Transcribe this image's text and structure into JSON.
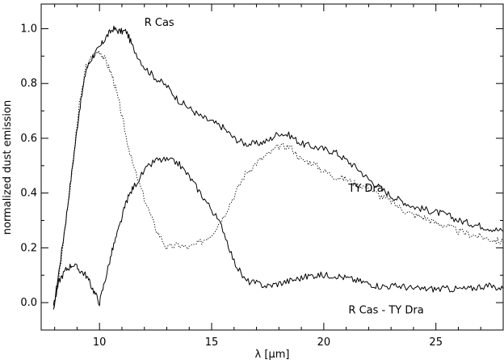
{
  "chart_data": {
    "type": "line",
    "xlabel": "λ [μm]",
    "ylabel": "normalized dust emission",
    "xlim": [
      7.4,
      28.0
    ],
    "ylim": [
      -0.1,
      1.09
    ],
    "xticks": [
      10,
      15,
      20,
      25
    ],
    "yticks": [
      0.0,
      0.2,
      0.4,
      0.6,
      0.8,
      1.0
    ],
    "xtick_labels": [
      "10",
      "15",
      "20",
      "25"
    ],
    "ytick_labels": [
      "0.0",
      "0.2",
      "0.4",
      "0.6",
      "0.8",
      "1.0"
    ],
    "grid": false,
    "legend": "none",
    "series": [
      {
        "name": "R Cas",
        "style": "solid",
        "x": [
          7.95,
          8.2,
          8.5,
          8.8,
          9.1,
          9.4,
          9.7,
          10.0,
          10.3,
          10.6,
          10.9,
          11.2,
          11.5,
          12.0,
          12.5,
          13.0,
          13.5,
          14.0,
          14.5,
          15.0,
          15.5,
          16.0,
          16.5,
          17.0,
          17.5,
          18.0,
          18.5,
          19.0,
          19.5,
          20.0,
          20.5,
          21.0,
          21.5,
          22.0,
          22.5,
          23.0,
          23.5,
          24.0,
          24.5,
          25.0,
          25.5,
          26.0,
          26.5,
          27.0,
          27.5,
          28.0
        ],
        "y": [
          -0.02,
          0.12,
          0.3,
          0.5,
          0.7,
          0.85,
          0.9,
          0.93,
          0.97,
          1.0,
          0.99,
          0.99,
          0.93,
          0.86,
          0.82,
          0.79,
          0.74,
          0.71,
          0.68,
          0.66,
          0.64,
          0.6,
          0.58,
          0.58,
          0.59,
          0.62,
          0.61,
          0.58,
          0.57,
          0.56,
          0.55,
          0.52,
          0.49,
          0.45,
          0.42,
          0.39,
          0.37,
          0.35,
          0.34,
          0.33,
          0.32,
          0.3,
          0.29,
          0.28,
          0.27,
          0.26
        ]
      },
      {
        "name": "TY Dra",
        "style": "dotted",
        "x": [
          7.95,
          8.2,
          8.5,
          8.8,
          9.1,
          9.4,
          9.7,
          10.0,
          10.3,
          10.6,
          10.9,
          11.2,
          11.5,
          12.0,
          12.5,
          13.0,
          13.5,
          14.0,
          14.5,
          15.0,
          15.5,
          16.0,
          16.5,
          17.0,
          17.5,
          18.0,
          18.5,
          19.0,
          19.5,
          20.0,
          20.5,
          21.0,
          21.5,
          22.0,
          22.5,
          23.0,
          23.5,
          24.0,
          24.5,
          25.0,
          25.5,
          26.0,
          26.5,
          27.0,
          27.5,
          28.0
        ],
        "y": [
          -0.02,
          0.1,
          0.3,
          0.5,
          0.72,
          0.86,
          0.9,
          0.92,
          0.88,
          0.82,
          0.72,
          0.6,
          0.5,
          0.38,
          0.27,
          0.2,
          0.21,
          0.2,
          0.22,
          0.25,
          0.31,
          0.39,
          0.47,
          0.51,
          0.54,
          0.57,
          0.57,
          0.52,
          0.51,
          0.48,
          0.46,
          0.45,
          0.43,
          0.42,
          0.39,
          0.37,
          0.34,
          0.32,
          0.31,
          0.29,
          0.28,
          0.26,
          0.25,
          0.24,
          0.23,
          0.22
        ]
      },
      {
        "name": "R Cas - TY Dra",
        "style": "solid",
        "x": [
          7.95,
          8.2,
          8.5,
          8.8,
          9.1,
          9.4,
          9.7,
          10.0,
          10.3,
          10.6,
          10.9,
          11.2,
          11.5,
          12.0,
          12.5,
          13.0,
          13.5,
          14.0,
          14.5,
          15.0,
          15.5,
          16.0,
          16.5,
          17.0,
          17.5,
          18.0,
          18.5,
          19.0,
          19.5,
          20.0,
          20.5,
          21.0,
          21.5,
          22.0,
          22.5,
          23.0,
          23.5,
          24.0,
          24.5,
          25.0,
          25.5,
          26.0,
          26.5,
          27.0,
          27.5,
          28.0
        ],
        "y": [
          -0.02,
          0.08,
          0.12,
          0.14,
          0.12,
          0.1,
          0.05,
          0.0,
          0.1,
          0.2,
          0.28,
          0.37,
          0.42,
          0.48,
          0.52,
          0.52,
          0.51,
          0.46,
          0.4,
          0.34,
          0.27,
          0.15,
          0.08,
          0.07,
          0.06,
          0.07,
          0.08,
          0.09,
          0.1,
          0.1,
          0.1,
          0.09,
          0.08,
          0.07,
          0.06,
          0.06,
          0.06,
          0.05,
          0.05,
          0.05,
          0.05,
          0.05,
          0.05,
          0.06,
          0.06,
          0.05
        ]
      }
    ],
    "annotations": [
      {
        "text": "R Cas",
        "x": 12.0,
        "y": 1.01
      },
      {
        "text": "TY Dra",
        "x": 21.1,
        "y": 0.405
      },
      {
        "text": "R Cas - TY Dra",
        "x": 21.1,
        "y": -0.04
      }
    ]
  }
}
